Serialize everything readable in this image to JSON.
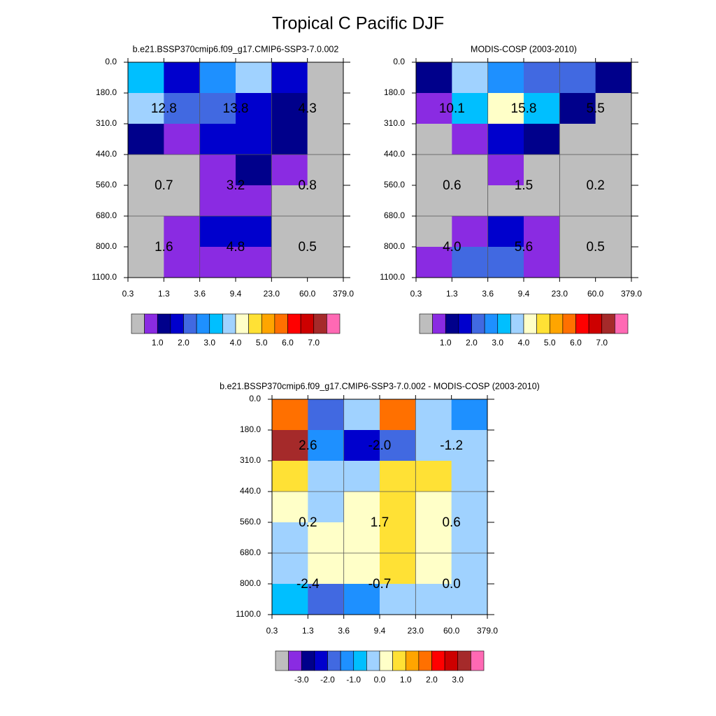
{
  "title": "Tropical C Pacific DJF",
  "chart_data": [
    {
      "type": "heatmap",
      "title": "b.e21.BSSP370cmip6.f09_g17.CMIP6-SSP3-7.0.002",
      "x_edges": [
        0.3,
        1.3,
        3.6,
        9.4,
        {
          "value": 23,
          "label": "23.0"
        },
        {
          "value": 60,
          "label": "60.0"
        },
        {
          "value": 379,
          "label": "379.0"
        }
      ],
      "y_edges": [
        {
          "value": 0,
          "label": "0.0"
        },
        {
          "value": 180,
          "label": "180.0"
        },
        {
          "value": 310,
          "label": "310.0"
        },
        {
          "value": 440,
          "label": "440.0"
        },
        {
          "value": 560,
          "label": "560.0"
        },
        {
          "value": 680,
          "label": "680.0"
        },
        {
          "value": 800,
          "label": "800.0"
        },
        {
          "value": 1100,
          "label": "1100.0"
        }
      ],
      "values": [
        [
          3.2,
          1.8,
          2.8,
          3.8,
          1.8,
          0.2
        ],
        [
          3.8,
          2.2,
          2.2,
          1.8,
          1.2,
          0.2
        ],
        [
          1.2,
          0.8,
          1.8,
          1.8,
          1.2,
          0.2
        ],
        [
          0.2,
          0.2,
          0.8,
          1.2,
          0.8,
          0.2
        ],
        [
          0.2,
          0.2,
          0.8,
          0.8,
          0.2,
          0.2
        ],
        [
          0.2,
          0.8,
          1.8,
          1.8,
          0.2,
          0.2
        ],
        [
          0.2,
          0.8,
          0.8,
          0.8,
          0.2,
          0.2
        ]
      ],
      "levels": [
        0.5,
        1,
        1.5,
        2,
        2.5,
        3,
        3.5,
        4,
        4.5,
        5,
        5.5,
        6,
        6.5,
        7,
        7.5
      ],
      "colors": [
        "#bebebe",
        "#8a2be2",
        "#00008b",
        "#0000cd",
        "#4169e1",
        "#1e90ff",
        "#00bfff",
        "#a0d2ff",
        "#ffffc8",
        "#ffe135",
        "#ffa500",
        "#ff7000",
        "#ff0000",
        "#cd0000",
        "#a52a2a",
        "#ff69b4"
      ],
      "colorbar_ticks": [
        {
          "value": 1,
          "label": "1.0"
        },
        {
          "value": 2,
          "label": "2.0"
        },
        {
          "value": 3,
          "label": "3.0"
        },
        {
          "value": 4,
          "label": "4.0"
        },
        {
          "value": 5,
          "label": "5.0"
        },
        {
          "value": 6,
          "label": "6.0"
        },
        {
          "value": 7,
          "label": "7.0"
        }
      ],
      "annotations": {
        "values": [
          12.8,
          13.8,
          4.3,
          0.7,
          3.2,
          0.8,
          1.6,
          4.8,
          0.5
        ],
        "value_labels": [
          "12.8",
          "13.8",
          "4.3",
          "0.7",
          "3.2",
          "0.8",
          "1.6",
          "4.8",
          "0.5"
        ]
      }
    },
    {
      "type": "heatmap",
      "title": "MODIS-COSP (2003-2010)",
      "x_edges": [
        0.3,
        1.3,
        3.6,
        9.4,
        {
          "value": 23,
          "label": "23.0"
        },
        {
          "value": 60,
          "label": "60.0"
        },
        {
          "value": 379,
          "label": "379.0"
        }
      ],
      "y_edges": [
        {
          "value": 0,
          "label": "0.0"
        },
        {
          "value": 180,
          "label": "180.0"
        },
        {
          "value": 310,
          "label": "310.0"
        },
        {
          "value": 440,
          "label": "440.0"
        },
        {
          "value": 560,
          "label": "560.0"
        },
        {
          "value": 680,
          "label": "680.0"
        },
        {
          "value": 800,
          "label": "800.0"
        },
        {
          "value": 1100,
          "label": "1100.0"
        }
      ],
      "values": [
        [
          1.2,
          3.8,
          2.8,
          2.2,
          2.2,
          1.2
        ],
        [
          0.8,
          3.2,
          4.2,
          3.2,
          1.2,
          0.2
        ],
        [
          0.2,
          0.8,
          1.8,
          1.2,
          0.2,
          0.2
        ],
        [
          0.2,
          0.2,
          0.8,
          0.2,
          0.2,
          0.2
        ],
        [
          0.2,
          0.2,
          0.2,
          0.2,
          0.2,
          0.2
        ],
        [
          0.2,
          0.8,
          1.8,
          0.8,
          0.2,
          0.2
        ],
        [
          0.8,
          2.2,
          2.2,
          0.8,
          0.2,
          0.2
        ]
      ],
      "levels": [
        0.5,
        1,
        1.5,
        2,
        2.5,
        3,
        3.5,
        4,
        4.5,
        5,
        5.5,
        6,
        6.5,
        7,
        7.5
      ],
      "colors": [
        "#bebebe",
        "#8a2be2",
        "#00008b",
        "#0000cd",
        "#4169e1",
        "#1e90ff",
        "#00bfff",
        "#a0d2ff",
        "#ffffc8",
        "#ffe135",
        "#ffa500",
        "#ff7000",
        "#ff0000",
        "#cd0000",
        "#a52a2a",
        "#ff69b4"
      ],
      "colorbar_ticks": [
        {
          "value": 1,
          "label": "1.0"
        },
        {
          "value": 2,
          "label": "2.0"
        },
        {
          "value": 3,
          "label": "3.0"
        },
        {
          "value": 4,
          "label": "4.0"
        },
        {
          "value": 5,
          "label": "5.0"
        },
        {
          "value": 6,
          "label": "6.0"
        },
        {
          "value": 7,
          "label": "7.0"
        }
      ],
      "annotations": {
        "values": [
          10.1,
          15.8,
          5.5,
          0.6,
          1.5,
          0.2,
          4,
          5.6,
          0.5
        ],
        "value_labels": [
          "10.1",
          "15.8",
          "5.5",
          "0.6",
          "1.5",
          "0.2",
          "4.0",
          "5.6",
          "0.5"
        ]
      }
    },
    {
      "type": "heatmap",
      "title": "b.e21.BSSP370cmip6.f09_g17.CMIP6-SSP3-7.0.002 - MODIS-COSP (2003-2010)",
      "x_edges": [
        0.3,
        1.3,
        3.6,
        9.4,
        {
          "value": 23,
          "label": "23.0"
        },
        {
          "value": 60,
          "label": "60.0"
        },
        {
          "value": 379,
          "label": "379.0"
        }
      ],
      "y_edges": [
        {
          "value": 0,
          "label": "0.0"
        },
        {
          "value": 180,
          "label": "180.0"
        },
        {
          "value": 310,
          "label": "310.0"
        },
        {
          "value": 440,
          "label": "440.0"
        },
        {
          "value": 560,
          "label": "560.0"
        },
        {
          "value": 680,
          "label": "680.0"
        },
        {
          "value": 800,
          "label": "800.0"
        },
        {
          "value": 1100,
          "label": "1100.0"
        }
      ],
      "values": [
        [
          1.8,
          -1.8,
          -0.2,
          1.8,
          -0.2,
          -1.2
        ],
        [
          3.2,
          -1.2,
          -2.2,
          -1.8,
          -0.2,
          -0.2
        ],
        [
          0.8,
          -0.2,
          -0.2,
          0.8,
          0.8,
          -0.2
        ],
        [
          0.2,
          -0.2,
          0.2,
          0.8,
          0.2,
          -0.2
        ],
        [
          -0.2,
          0.2,
          0.2,
          0.8,
          0.2,
          -0.2
        ],
        [
          -0.2,
          0.2,
          0.2,
          0.8,
          0.2,
          -0.2
        ],
        [
          -0.8,
          -1.8,
          -1.2,
          -0.2,
          -0.2,
          -0.2
        ]
      ],
      "levels": [
        -3.5,
        -3,
        -2.5,
        -2,
        -1.5,
        -1,
        -0.5,
        0,
        0.5,
        1,
        1.5,
        2,
        2.5,
        3,
        3.5
      ],
      "colors": [
        "#bebebe",
        "#8a2be2",
        "#00008b",
        "#0000cd",
        "#4169e1",
        "#1e90ff",
        "#00bfff",
        "#a0d2ff",
        "#ffffc8",
        "#ffe135",
        "#ffa500",
        "#ff7000",
        "#ff0000",
        "#cd0000",
        "#a52a2a",
        "#ff69b4"
      ],
      "colorbar_ticks": [
        {
          "value": -3,
          "label": "-3.0"
        },
        {
          "value": -2,
          "label": "-2.0"
        },
        {
          "value": -1,
          "label": "-1.0"
        },
        {
          "value": 0,
          "label": "0.0"
        },
        {
          "value": 1,
          "label": "1.0"
        },
        {
          "value": 2,
          "label": "2.0"
        },
        {
          "value": 3,
          "label": "3.0"
        }
      ],
      "annotations": {
        "values": [
          2.6,
          -2,
          -1.2,
          0.2,
          1.7,
          0.6,
          -2.4,
          -0.7,
          0
        ],
        "value_labels": [
          "2.6",
          "-2.0",
          "-1.2",
          "0.2",
          "1.7",
          "0.6",
          "-2.4",
          "-0.7",
          "0.0"
        ]
      }
    }
  ]
}
